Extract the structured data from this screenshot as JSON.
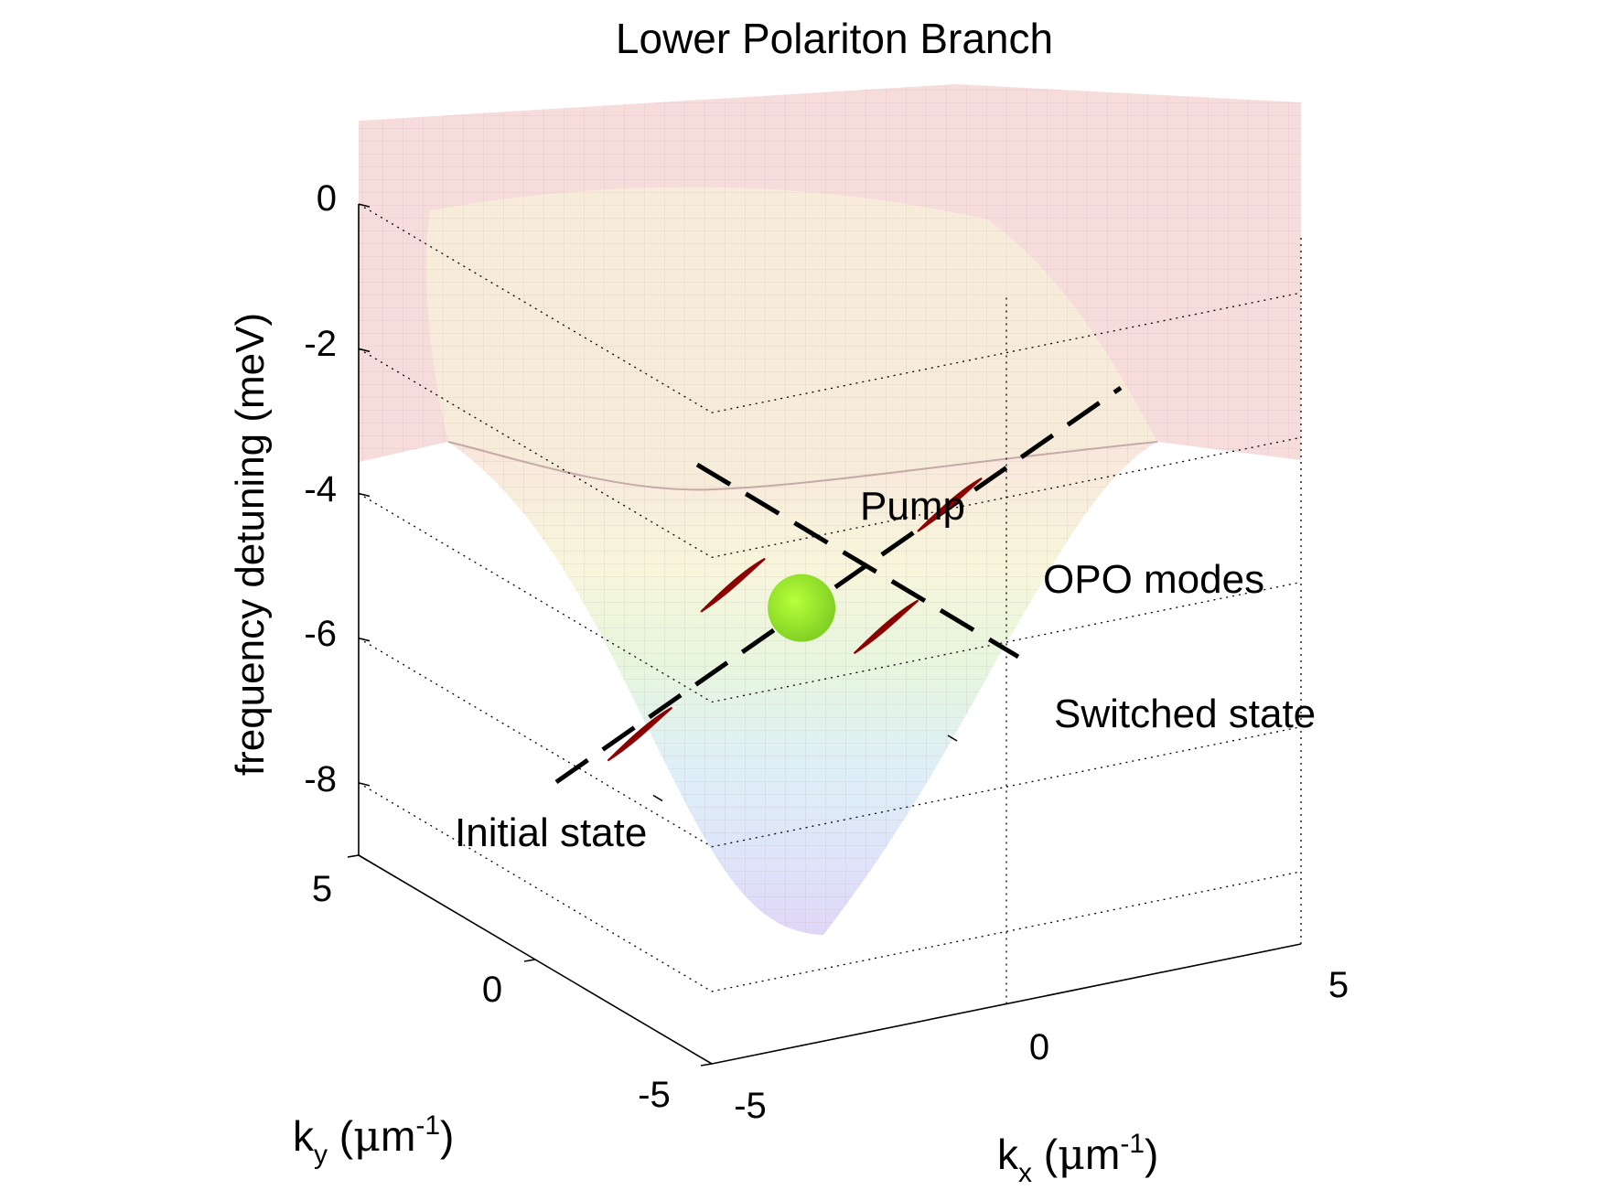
{
  "chart_data": {
    "type": "surface3d",
    "title": "Lower Polariton Branch",
    "zlabel": "frequency detuning (meV)",
    "xlabel": {
      "main": "k",
      "sub": "x",
      "unit_pre": " (",
      "mu": "μ",
      "unit_m": "m",
      "sup": "-1",
      "unit_post": ")"
    },
    "ylabel": {
      "main": "k",
      "sub": "y",
      "unit_pre": " (",
      "mu": "μ",
      "unit_m": "m",
      "sup": "-1",
      "unit_post": ")"
    },
    "xlim": [
      -5,
      5
    ],
    "ylim": [
      -5,
      5
    ],
    "zlim": [
      -9,
      0
    ],
    "x_ticks": [
      -5,
      0,
      5
    ],
    "y_ticks": [
      -5,
      0,
      5
    ],
    "z_ticks": [
      0,
      -2,
      -4,
      -6,
      -8
    ],
    "x_tick_labels": [
      "-5",
      "0",
      "5"
    ],
    "y_tick_labels": [
      "-5",
      "0",
      "5"
    ],
    "z_tick_labels": [
      "0",
      "-2",
      "-4",
      "-6",
      "-8"
    ],
    "surface": {
      "min_value": -9,
      "plateau_value": -3.4,
      "top_value": 0.8,
      "colormap": "jet (transparent)"
    },
    "points": [
      {
        "name": "Pump",
        "kx": 0,
        "ky": 0.8,
        "z": -5.2,
        "color": "#8fdc26"
      },
      {
        "name": "OPO mode 1",
        "kx": -1.3,
        "ky": 0.6,
        "z": -4.6
      },
      {
        "name": "OPO mode 2",
        "kx": 1.6,
        "ky": 1.1,
        "z": -5.8
      },
      {
        "name": "OPO mode 3",
        "kx": 1.3,
        "ky": -1.2,
        "z": -3.4
      },
      {
        "name": "OPO mode 4",
        "kx": -2.1,
        "ky": 1.9,
        "z": -6.9
      }
    ],
    "annotations": [
      "Pump",
      "OPO modes",
      "Switched state",
      "Initial state"
    ],
    "colors": {
      "mode_marker": "#8b0000",
      "pump": "#8fdc26",
      "axes": "#000000"
    }
  }
}
